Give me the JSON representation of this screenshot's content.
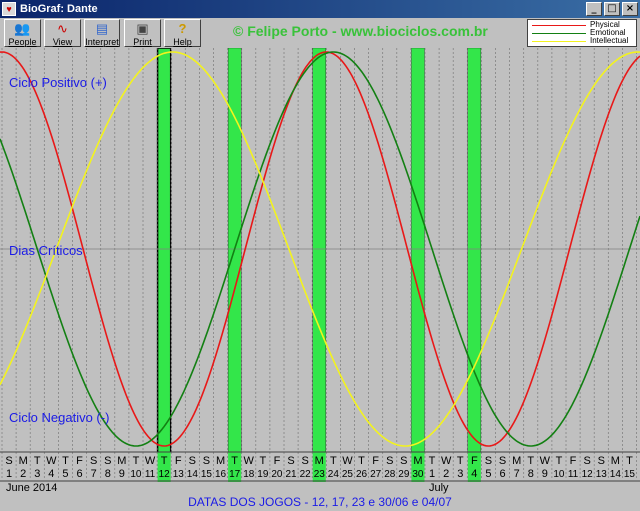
{
  "window": {
    "title": "BioGraf: Dante",
    "controls": [
      "_",
      "□",
      "×"
    ]
  },
  "toolbar": {
    "buttons": [
      {
        "label": "People",
        "icon": "people-icon"
      },
      {
        "label": "View",
        "icon": "view-icon"
      },
      {
        "label": "Interpret",
        "icon": "interpret-icon"
      },
      {
        "label": "Print",
        "icon": "print-icon"
      },
      {
        "label": "Help",
        "icon": "help-icon"
      }
    ]
  },
  "copyright": "© Felipe Porto - www.biociclos.com.br",
  "legend": [
    {
      "name": "Physical",
      "color": "#e81818"
    },
    {
      "name": "Emotional",
      "color": "#138013"
    },
    {
      "name": "Intellectual",
      "color": "#f3f31e"
    }
  ],
  "labels": {
    "positive": "Ciclo Positivo (+)",
    "critical": "Dias Críticos",
    "negative": "Ciclo Negativo (-)"
  },
  "months": {
    "first": "June 2014",
    "second": "July"
  },
  "footer": "DATAS DOS JOGOS - 12, 17, 23 e 30/06 e 04/07",
  "chart_data": {
    "type": "line",
    "x": [
      "S 1",
      "M 2",
      "T 3",
      "W 4",
      "T 5",
      "F 6",
      "S 7",
      "S 8",
      "M 9",
      "T 10",
      "W 11",
      "T 12",
      "F 13",
      "S 14",
      "S 15",
      "M 16",
      "T 17",
      "W 18",
      "T 19",
      "F 20",
      "S 21",
      "S 22",
      "M 23",
      "T 24",
      "W 25",
      "T 26",
      "F 27",
      "S 28",
      "S 29",
      "M 30",
      "T 1",
      "W 2",
      "T 3",
      "F 4",
      "S 5",
      "S 6",
      "M 7",
      "T 8",
      "W 9",
      "T 10",
      "F 11",
      "S 12",
      "S 13",
      "M 14",
      "T 15"
    ],
    "weekday_letters": [
      "S",
      "M",
      "T",
      "W",
      "T",
      "F",
      "S",
      "S",
      "M",
      "T",
      "W",
      "T",
      "F",
      "S",
      "S",
      "M",
      "T",
      "W",
      "T",
      "F",
      "S",
      "S",
      "M",
      "T",
      "W",
      "T",
      "F",
      "S",
      "S",
      "M",
      "T",
      "W",
      "T",
      "F",
      "S",
      "S",
      "M",
      "T",
      "W",
      "T",
      "F",
      "S",
      "S",
      "M",
      "T"
    ],
    "day_numbers": [
      "1",
      "2",
      "3",
      "4",
      "5",
      "6",
      "7",
      "8",
      "9",
      "10",
      "11",
      "12",
      "13",
      "14",
      "15",
      "16",
      "17",
      "18",
      "19",
      "20",
      "21",
      "22",
      "23",
      "24",
      "25",
      "26",
      "27",
      "28",
      "29",
      "30",
      "1",
      "2",
      "3",
      "4",
      "5",
      "6",
      "7",
      "8",
      "9",
      "10",
      "11",
      "12",
      "13",
      "14",
      "15"
    ],
    "highlighted_days": [
      11,
      16,
      22,
      29,
      33
    ],
    "ylim": [
      -1,
      1
    ],
    "series": [
      {
        "name": "Physical",
        "color": "#e81818",
        "period": 23,
        "peak_day_index": 22.5
      },
      {
        "name": "Emotional",
        "color": "#138013",
        "period": 28,
        "peak_day_index": 23
      },
      {
        "name": "Intellectual",
        "color": "#f3f31e",
        "period": 33,
        "peak_day_index": 11.6
      }
    ]
  }
}
